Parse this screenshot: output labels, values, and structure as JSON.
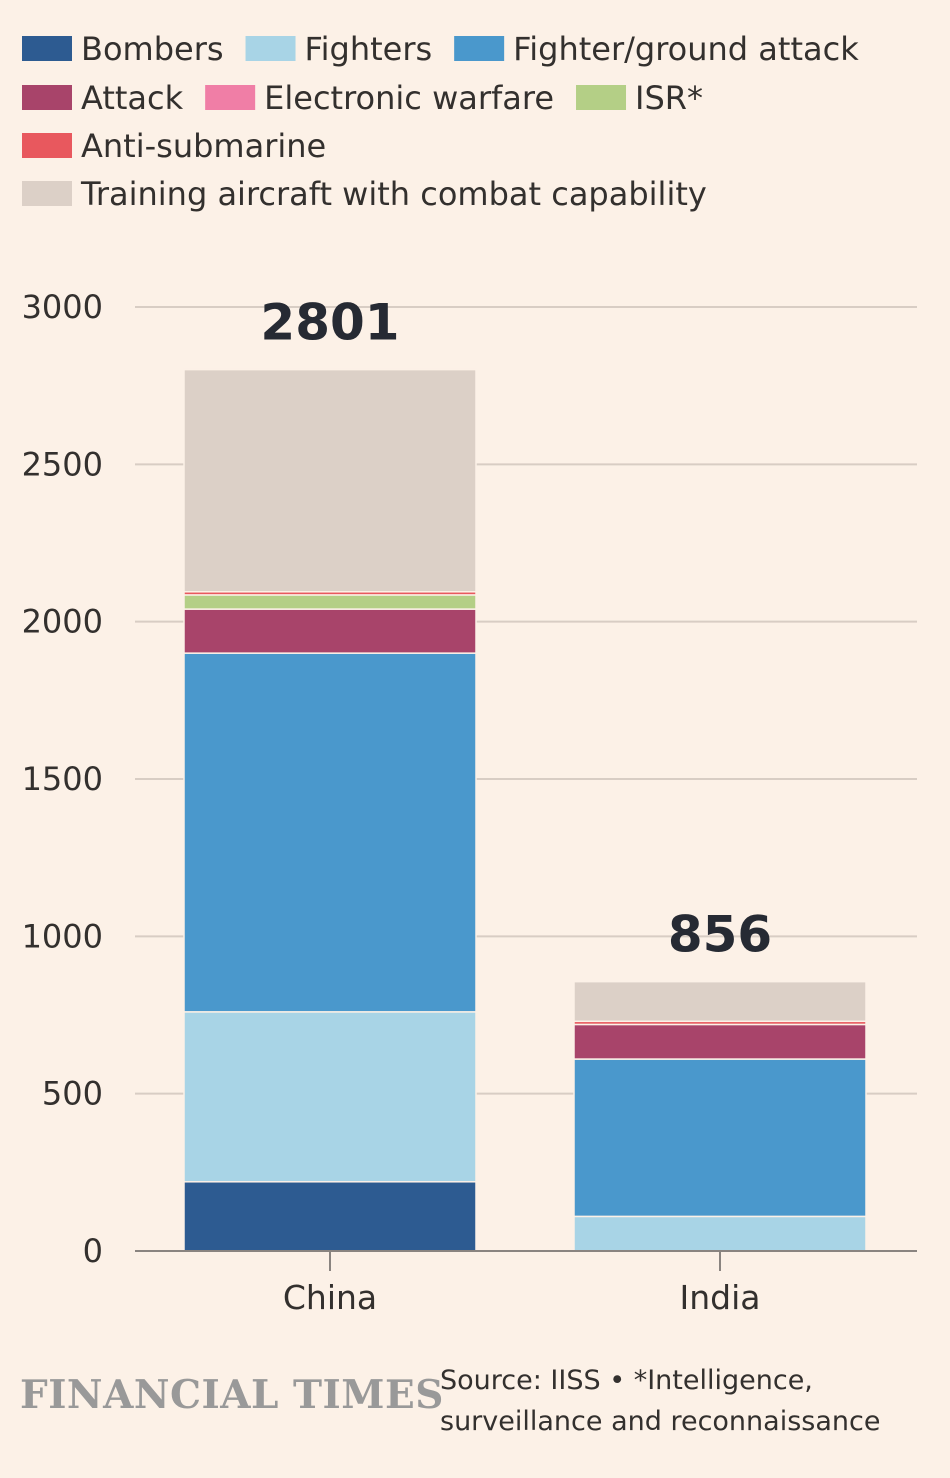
{
  "chart_data": {
    "type": "bar",
    "stacked": true,
    "categories": [
      "China",
      "India"
    ],
    "totals": [
      2801,
      856
    ],
    "series": [
      {
        "name": "Bombers",
        "color": "#2d5b91",
        "values": [
          220,
          0
        ]
      },
      {
        "name": "Fighters",
        "color": "#a8d4e6",
        "values": [
          540,
          110
        ]
      },
      {
        "name": "Fighter/ground attack",
        "color": "#4a98cc",
        "values": [
          1140,
          500
        ]
      },
      {
        "name": "Attack",
        "color": "#a8446a",
        "values": [
          140,
          110
        ]
      },
      {
        "name": "Electronic warfare",
        "color": "#f07ea6",
        "values": [
          0,
          0
        ]
      },
      {
        "name": "ISR*",
        "color": "#b4cf86",
        "values": [
          45,
          0
        ]
      },
      {
        "name": "Anti-submarine",
        "color": "#e8585e",
        "values": [
          10,
          10
        ]
      },
      {
        "name": "Training aircraft with combat capability",
        "color": "#dcd0c7",
        "values": [
          706,
          126
        ]
      }
    ],
    "yticks": [
      0,
      500,
      1000,
      1500,
      2000,
      2500,
      3000
    ],
    "ylim": [
      0,
      3000
    ],
    "title": "",
    "xlabel": "",
    "ylabel": "",
    "grid": true,
    "legend_position": "top"
  },
  "footer": {
    "brand": "FINANCIAL TIMES",
    "source_line1": "Source: IISS • *Intelligence,",
    "source_line2": "surveillance and reconnaissance"
  }
}
